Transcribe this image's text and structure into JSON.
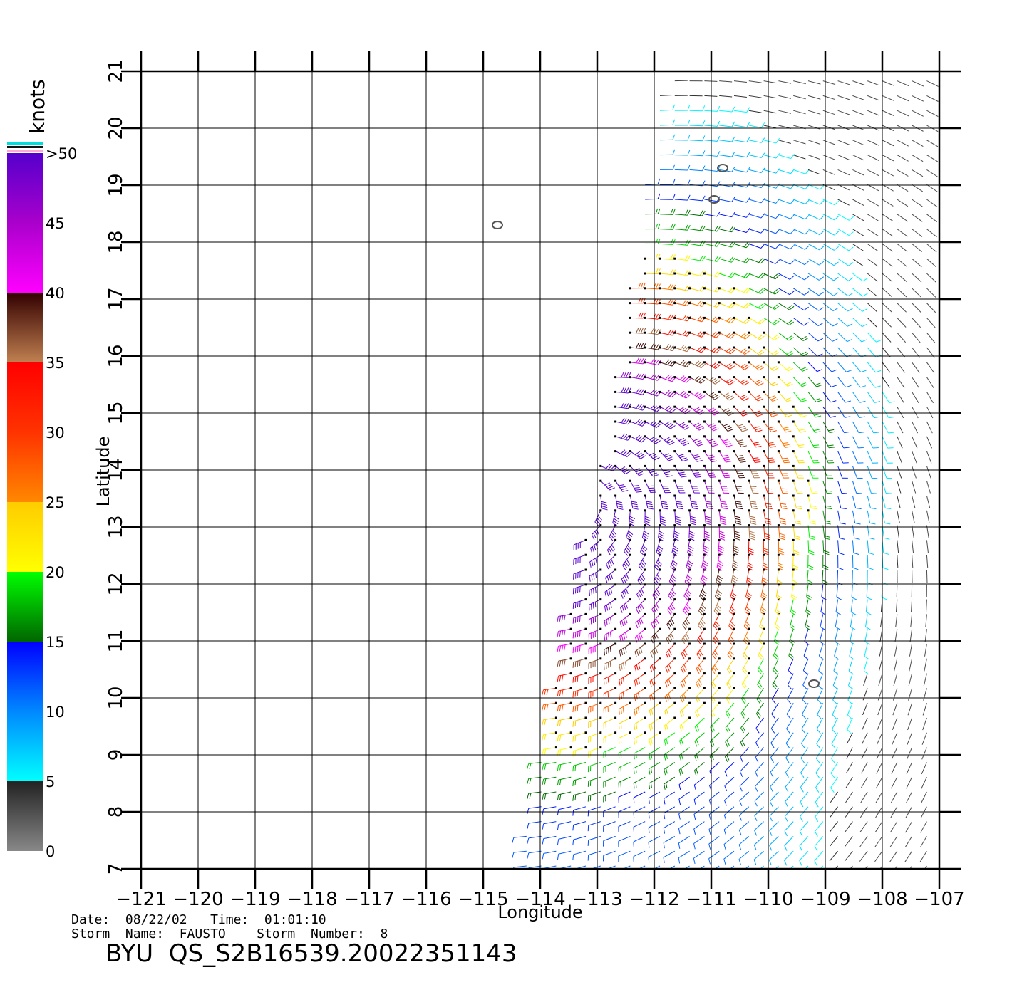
{
  "chart_data": {
    "type": "wind-barb map",
    "xlabel": "Longitude",
    "ylabel": "Latitude",
    "xlim": [
      -121,
      -107
    ],
    "ylim": [
      7,
      21
    ],
    "x_ticks": [
      -121,
      -120,
      -119,
      -118,
      -117,
      -116,
      -115,
      -114,
      -113,
      -112,
      -111,
      -110,
      -109,
      -108,
      -107
    ],
    "y_ticks": [
      7,
      8,
      9,
      10,
      11,
      12,
      13,
      14,
      15,
      16,
      17,
      18,
      19,
      20,
      21
    ],
    "x_tick_labels": [
      "−121",
      "−120",
      "−119",
      "−118",
      "−117",
      "−116",
      "−115",
      "−114",
      "−113",
      "−112",
      "−111",
      "−110",
      "−109",
      "−108",
      "−107"
    ],
    "y_tick_labels": [
      "7",
      "8",
      "9",
      "10",
      "11",
      "12",
      "13",
      "14",
      "15",
      "16",
      "17",
      "18",
      "19",
      "20",
      "21"
    ],
    "grid": true,
    "swath_corners": [
      [
        -114.4,
        7.0
      ],
      [
        -112.8,
        14.9
      ],
      [
        -112.3,
        18.2
      ],
      [
        -111.9,
        20.8
      ],
      [
        -110.2,
        21.0
      ],
      [
        -107.0,
        21.0
      ],
      [
        -107.0,
        7.0
      ]
    ],
    "islands": [
      [
        -114.75,
        18.3
      ],
      [
        -110.95,
        18.75
      ],
      [
        -110.8,
        19.3
      ],
      [
        -109.2,
        10.25
      ]
    ],
    "storm_center": [
      -113.3,
      13.6
    ],
    "colorbar": {
      "unit_label": "knots",
      "stops": [
        {
          "value": 0,
          "color": "#888888"
        },
        {
          "value": 5,
          "color": "#222222"
        },
        {
          "value": 5,
          "color": "#00ffff"
        },
        {
          "value": 10,
          "color": "#0088ff"
        },
        {
          "value": 15,
          "color": "#0000ff"
        },
        {
          "value": 15,
          "color": "#006600"
        },
        {
          "value": 20,
          "color": "#00ff00"
        },
        {
          "value": 20,
          "color": "#ffff00"
        },
        {
          "value": 25,
          "color": "#ffcc00"
        },
        {
          "value": 25,
          "color": "#ff8800"
        },
        {
          "value": 30,
          "color": "#ff3300"
        },
        {
          "value": 35,
          "color": "#ff0000"
        },
        {
          "value": 35,
          "color": "#c08050"
        },
        {
          "value": 40,
          "color": "#330000"
        },
        {
          "value": 40,
          "color": "#ff00ff"
        },
        {
          "value": 45,
          "color": "#aa00cc"
        },
        {
          "value": 50,
          "color": "#5500cc"
        }
      ],
      "tick_labels": [
        "0",
        "5",
        "10",
        "15",
        "20",
        "25",
        "30",
        "35",
        "40",
        "45",
        ">50"
      ]
    }
  },
  "footer": {
    "date_time": "Date:  08/22/02   Time:  01:01:10",
    "storm": "Storm  Name:  FAUSTO    Storm  Number:  8",
    "product": "BYU  QS_S2B16539.20022351143"
  }
}
